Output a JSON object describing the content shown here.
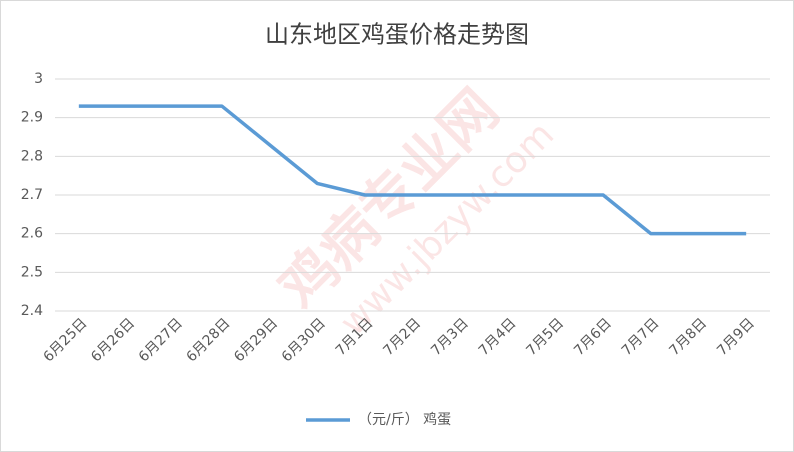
{
  "chart_data": {
    "type": "line",
    "title": "山东地区鸡蛋价格走势图",
    "categories": [
      "6月25日",
      "6月26日",
      "6月27日",
      "6月28日",
      "6月29日",
      "6月30日",
      "7月1日",
      "7月2日",
      "7月3日",
      "7月4日",
      "7月5日",
      "7月6日",
      "7月7日",
      "7月8日",
      "7月9日"
    ],
    "series": [
      {
        "name": "（元/斤） 鸡蛋",
        "color": "#5b9bd5",
        "values": [
          2.93,
          2.93,
          2.93,
          2.93,
          2.83,
          2.73,
          2.7,
          2.7,
          2.7,
          2.7,
          2.7,
          2.7,
          2.6,
          2.6,
          2.6
        ]
      }
    ],
    "ylim": [
      2.4,
      3
    ],
    "yticks": [
      2.4,
      2.5,
      2.6,
      2.7,
      2.8,
      2.9,
      3
    ],
    "grid": true,
    "legend": "bottom",
    "watermark": [
      "鸡病专业网",
      "www.jbzyw.com"
    ]
  }
}
